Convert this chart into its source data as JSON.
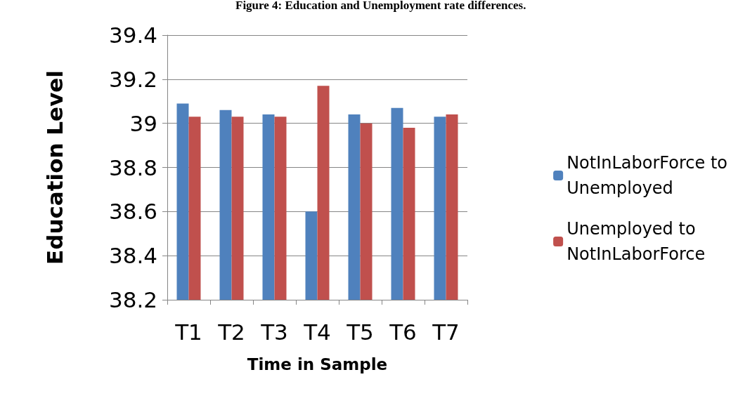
{
  "chart_data": {
    "type": "bar",
    "title": "Figure 4: Education and Unemployment rate differences.",
    "xlabel": "Time in Sample",
    "ylabel": "Education Level",
    "categories": [
      "T1",
      "T2",
      "T3",
      "T4",
      "T5",
      "T6",
      "T7"
    ],
    "series": [
      {
        "name": "NotInLaborForce to Unemployed",
        "color": "#4f81bd",
        "values": [
          39.09,
          39.06,
          39.04,
          38.6,
          39.04,
          39.07,
          39.03
        ]
      },
      {
        "name": "Unemployed to NotInLaborForce",
        "color": "#c0504d",
        "values": [
          39.03,
          39.03,
          39.03,
          39.17,
          39.0,
          38.98,
          39.04
        ]
      }
    ],
    "ylim": [
      38.2,
      39.4
    ],
    "yticks": [
      38.2,
      38.4,
      38.6,
      38.8,
      39,
      39.2,
      39.4
    ],
    "grid": "y",
    "legend": "right"
  }
}
